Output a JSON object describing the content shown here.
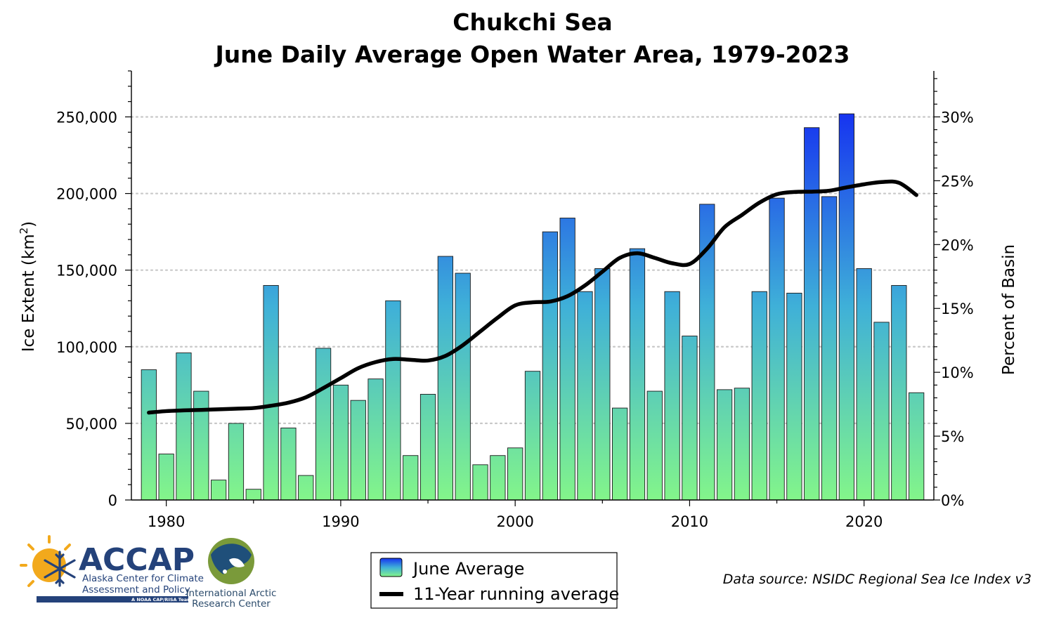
{
  "colors": {
    "bar_top": "#1633f0",
    "bar_bottom": "#83f58a",
    "running_line": "#000000",
    "grid": "#c8c8c8",
    "logo_navy": "#24427a",
    "logo_gold": "#f2a91c",
    "globe_green": "#7a9a3a",
    "globe_blue": "#1f4f7a"
  },
  "chart_data": {
    "type": "bar",
    "title": "Chukchi Sea",
    "subtitle": "June Daily Average Open Water Area, 1979-2023",
    "ylabel": "Ice Extent (km",
    "ylabel_sup": "2",
    "ylabel_end": ")",
    "y2label": "Percent of Basin",
    "ylim": [
      0,
      280000
    ],
    "y_ticks": [
      0,
      50000,
      100000,
      150000,
      200000,
      250000
    ],
    "y_tick_labels": [
      "0",
      "50,000",
      "100,000",
      "150,000",
      "200,000",
      "250,000"
    ],
    "y2_ticks_percent": [
      0,
      5,
      10,
      15,
      20,
      25,
      30
    ],
    "y2_tick_labels": [
      "0%",
      "5%",
      "10%",
      "15%",
      "20%",
      "25%",
      "30%"
    ],
    "y2_max_percent": 33.6,
    "xlim": [
      1978,
      2024
    ],
    "x_ticks": [
      1980,
      1990,
      2000,
      2010,
      2020
    ],
    "x_tick_labels": [
      "1980",
      "1990",
      "2000",
      "2010",
      "2020"
    ],
    "grid": "horizontal dotted",
    "series": [
      {
        "name": "June Average",
        "type": "bar",
        "x": [
          1979,
          1980,
          1981,
          1982,
          1983,
          1984,
          1985,
          1986,
          1987,
          1988,
          1989,
          1990,
          1991,
          1992,
          1993,
          1994,
          1995,
          1996,
          1997,
          1998,
          1999,
          2000,
          2001,
          2002,
          2003,
          2004,
          2005,
          2006,
          2007,
          2008,
          2009,
          2010,
          2011,
          2012,
          2013,
          2014,
          2015,
          2016,
          2017,
          2018,
          2019,
          2020,
          2021,
          2022,
          2023
        ],
        "values": [
          85000,
          30000,
          96000,
          71000,
          13000,
          50000,
          7000,
          140000,
          47000,
          16000,
          99000,
          75000,
          65000,
          79000,
          130000,
          29000,
          69000,
          159000,
          148000,
          23000,
          29000,
          34000,
          84000,
          175000,
          184000,
          136000,
          151000,
          60000,
          164000,
          71000,
          136000,
          107000,
          193000,
          72000,
          73000,
          136000,
          197000,
          135000,
          243000,
          198000,
          252000,
          151000,
          116000,
          140000,
          70000
        ]
      },
      {
        "name": "11-Year running average",
        "type": "line",
        "x": [
          1979,
          1980,
          1981,
          1982,
          1983,
          1984,
          1985,
          1986,
          1987,
          1988,
          1989,
          1990,
          1991,
          1992,
          1993,
          1994,
          1995,
          1996,
          1997,
          1998,
          1999,
          2000,
          2001,
          2002,
          2003,
          2004,
          2005,
          2006,
          2007,
          2008,
          2009,
          2010,
          2011,
          2012,
          2013,
          2014,
          2015,
          2016,
          2017,
          2018,
          2019,
          2020,
          2021,
          2022,
          2023
        ],
        "values": [
          57000,
          58000,
          58500,
          58800,
          59200,
          59600,
          60000,
          61500,
          63500,
          67000,
          73000,
          79500,
          86000,
          90000,
          92000,
          91500,
          91000,
          94000,
          101000,
          110000,
          119000,
          127000,
          129000,
          129500,
          133000,
          140000,
          149000,
          158000,
          161000,
          158000,
          154500,
          154000,
          164000,
          178000,
          186000,
          194000,
          199500,
          201000,
          201200,
          201800,
          204000,
          206000,
          207500,
          207000,
          199000
        ]
      }
    ],
    "legend_position": "bottom-center",
    "source": "Data source: NSIDC Regional Sea Ice Index v3"
  },
  "logos": {
    "accap_name": "ACCAP",
    "accap_line1": "Alaska Center for Climate",
    "accap_line2": "Assessment and Policy",
    "accap_tag": "A NOAA CAP/RISA Team",
    "iarc_line1": "International Arctic",
    "iarc_line2": "Research Center"
  }
}
